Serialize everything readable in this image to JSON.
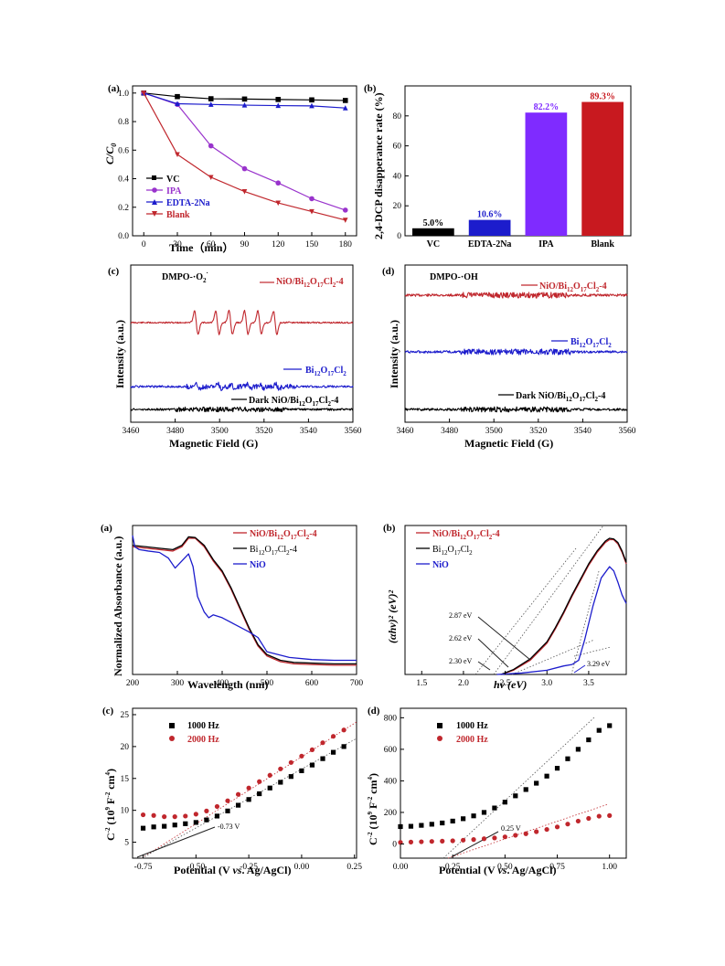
{
  "chart_data": [
    {
      "id": "a1",
      "type": "line",
      "panel": "(a)",
      "xlabel": "Time (min)",
      "ylabel": "C/C0",
      "xlim": [
        -10,
        190
      ],
      "ylim": [
        0,
        1.05
      ],
      "xticks": [
        0,
        30,
        60,
        90,
        120,
        150,
        180
      ],
      "yticks": [
        0.0,
        0.2,
        0.4,
        0.6,
        0.8,
        1.0
      ],
      "legend": "bottom-left",
      "series": [
        {
          "name": "VC",
          "color": "#000000",
          "marker": "square",
          "x": [
            0,
            30,
            60,
            90,
            120,
            150,
            180
          ],
          "y": [
            1.0,
            0.975,
            0.96,
            0.958,
            0.955,
            0.952,
            0.948
          ]
        },
        {
          "name": "IPA",
          "color": "#9933cc",
          "marker": "circle",
          "x": [
            0,
            30,
            60,
            90,
            120,
            150,
            180
          ],
          "y": [
            1.0,
            0.92,
            0.63,
            0.47,
            0.37,
            0.26,
            0.18
          ]
        },
        {
          "name": "EDTA-2Na",
          "color": "#1c1ccc",
          "marker": "triangle",
          "x": [
            0,
            30,
            60,
            90,
            120,
            150,
            180
          ],
          "y": [
            1.0,
            0.925,
            0.92,
            0.915,
            0.912,
            0.91,
            0.895
          ]
        },
        {
          "name": "Blank",
          "color": "#c0272d",
          "marker": "triangle-down",
          "x": [
            0,
            30,
            60,
            90,
            120,
            150,
            180
          ],
          "y": [
            1.0,
            0.57,
            0.41,
            0.31,
            0.23,
            0.17,
            0.11
          ]
        }
      ]
    },
    {
      "id": "b1",
      "type": "bar",
      "panel": "(b)",
      "ylabel": "2,4-DCP disapperance rate (%)",
      "ylim": [
        0,
        100
      ],
      "yticks": [
        0,
        20,
        40,
        60,
        80
      ],
      "categories": [
        "VC",
        "EDTA-2Na",
        "IPA",
        "Blank"
      ],
      "values": [
        5.0,
        10.6,
        82.2,
        89.3
      ],
      "labels": [
        "5.0%",
        "10.6%",
        "82.2%",
        "89.3%"
      ],
      "colors": [
        "#000000",
        "#1c1ccc",
        "#7f2bff",
        "#c8191f"
      ]
    },
    {
      "id": "c1",
      "type": "line",
      "panel": "(c)",
      "subtitle": "DMPO-·O2−",
      "xlabel": "Magnetic Field (G)",
      "ylabel": "Intensity (a.u.)",
      "xlim": [
        3460,
        3560
      ],
      "xticks": [
        3460,
        3480,
        3500,
        3520,
        3540,
        3560
      ],
      "series": [
        {
          "name": "NiO/Bi12O17Cl2-4",
          "color": "#c0272d"
        },
        {
          "name": "Bi12O17Cl2",
          "color": "#1c1ccc"
        },
        {
          "name": "Dark NiO/Bi12O17Cl2-4",
          "color": "#000000"
        }
      ],
      "epr_lines": [
        3489.5,
        3499,
        3505,
        3512,
        3518,
        3525
      ]
    },
    {
      "id": "d1",
      "type": "line",
      "panel": "(d)",
      "subtitle": "DMPO-·OH",
      "xlabel": "Magnetic Field (G)",
      "ylabel": "Intensity (a.u.)",
      "xlim": [
        3460,
        3560
      ],
      "xticks": [
        3460,
        3480,
        3500,
        3520,
        3540,
        3560
      ],
      "series": [
        {
          "name": "NiO/Bi12O17Cl2-4",
          "color": "#c0272d"
        },
        {
          "name": "Bi12O17Cl2",
          "color": "#1c1ccc"
        },
        {
          "name": "Dark NiO/Bi12O17Cl2-4",
          "color": "#000000"
        }
      ]
    },
    {
      "id": "a2",
      "type": "line",
      "panel": "(a)",
      "xlabel": "Wavelength (nm)",
      "ylabel": "Normalized Absorbance (a.u.)",
      "xlim": [
        200,
        700
      ],
      "xticks": [
        200,
        300,
        400,
        500,
        600,
        700
      ],
      "series": [
        {
          "name": "NiO/Bi12O17Cl2-4",
          "color": "#c0272d",
          "x": [
            200,
            230,
            260,
            290,
            310,
            325,
            340,
            360,
            380,
            400,
            420,
            440,
            460,
            480,
            500,
            530,
            560,
            600,
            650,
            700
          ],
          "y": [
            0.9,
            0.89,
            0.88,
            0.87,
            0.9,
            0.96,
            0.96,
            0.9,
            0.8,
            0.72,
            0.6,
            0.46,
            0.32,
            0.2,
            0.13,
            0.09,
            0.075,
            0.07,
            0.065,
            0.065
          ]
        },
        {
          "name": "Bi12O17Cl2-4",
          "color": "#000000",
          "x": [
            200,
            230,
            260,
            290,
            310,
            325,
            340,
            360,
            380,
            400,
            420,
            440,
            460,
            480,
            500,
            530,
            560,
            600,
            650,
            700
          ],
          "y": [
            0.91,
            0.9,
            0.89,
            0.88,
            0.91,
            0.97,
            0.965,
            0.91,
            0.81,
            0.73,
            0.61,
            0.47,
            0.33,
            0.21,
            0.14,
            0.1,
            0.085,
            0.08,
            0.075,
            0.075
          ]
        },
        {
          "name": "NiO",
          "color": "#1c1ccc",
          "x": [
            200,
            205,
            215,
            235,
            260,
            280,
            295,
            310,
            325,
            335,
            345,
            360,
            370,
            380,
            400,
            430,
            460,
            480,
            500,
            550,
            600,
            650,
            700
          ],
          "y": [
            0.98,
            0.9,
            0.88,
            0.87,
            0.86,
            0.82,
            0.75,
            0.8,
            0.85,
            0.76,
            0.55,
            0.44,
            0.4,
            0.42,
            0.4,
            0.35,
            0.3,
            0.26,
            0.16,
            0.12,
            0.105,
            0.1,
            0.1
          ]
        }
      ]
    },
    {
      "id": "b2",
      "type": "line",
      "panel": "(b)",
      "xlabel": "hν (eV)",
      "ylabel": "(αhν)² (eV)²",
      "xlim": [
        1.3,
        3.95
      ],
      "xticks": [
        1.5,
        2.0,
        2.5,
        3.0,
        3.5
      ],
      "series": [
        {
          "name": "NiO/Bi12O17Cl2-4",
          "color": "#c0272d",
          "x": [
            2.45,
            2.6,
            2.8,
            3.0,
            3.1,
            3.2,
            3.3,
            3.4,
            3.5,
            3.6,
            3.7,
            3.75,
            3.8,
            3.85,
            3.9,
            3.95
          ],
          "y": [
            0.0,
            0.03,
            0.1,
            0.22,
            0.32,
            0.43,
            0.55,
            0.66,
            0.77,
            0.86,
            0.93,
            0.95,
            0.95,
            0.92,
            0.86,
            0.78
          ]
        },
        {
          "name": "Bi12O17Cl2",
          "color": "#000000",
          "x": [
            2.45,
            2.6,
            2.8,
            3.0,
            3.1,
            3.2,
            3.3,
            3.4,
            3.5,
            3.6,
            3.7,
            3.75,
            3.8,
            3.85,
            3.9,
            3.95
          ],
          "y": [
            0.0,
            0.035,
            0.11,
            0.23,
            0.33,
            0.44,
            0.56,
            0.67,
            0.78,
            0.87,
            0.94,
            0.96,
            0.955,
            0.93,
            0.87,
            0.79
          ]
        },
        {
          "name": "NiO",
          "color": "#1c1ccc",
          "x": [
            2.4,
            2.7,
            3.0,
            3.2,
            3.3,
            3.38,
            3.45,
            3.55,
            3.65,
            3.75,
            3.8,
            3.85,
            3.9,
            3.95
          ],
          "y": [
            0.0,
            0.01,
            0.03,
            0.06,
            0.07,
            0.1,
            0.24,
            0.48,
            0.68,
            0.76,
            0.73,
            0.65,
            0.56,
            0.5
          ]
        }
      ],
      "annotations": [
        "2.87 eV",
        "2.62 eV",
        "2.30 eV",
        "3.29 eV"
      ]
    },
    {
      "id": "c2",
      "type": "scatter",
      "panel": "(c)",
      "xlabel": "Potential (V vs. Ag/AgCl)",
      "ylabel": "C−2 (10⁹ F−2 cm⁴)",
      "xlim": [
        -0.8,
        0.26
      ],
      "ylim": [
        2.5,
        26
      ],
      "xticks": [
        -0.75,
        -0.5,
        -0.25,
        0.0,
        0.25
      ],
      "yticks": [
        5,
        10,
        15,
        20,
        25
      ],
      "series": [
        {
          "name": "1000 Hz",
          "color": "#000000",
          "marker": "square",
          "x": [
            -0.75,
            -0.7,
            -0.65,
            -0.6,
            -0.55,
            -0.5,
            -0.45,
            -0.4,
            -0.35,
            -0.3,
            -0.25,
            -0.2,
            -0.15,
            -0.1,
            -0.05,
            0.0,
            0.05,
            0.1,
            0.15,
            0.2
          ],
          "y": [
            7.2,
            7.4,
            7.5,
            7.7,
            7.9,
            8.1,
            8.5,
            9.1,
            9.9,
            10.8,
            11.7,
            12.6,
            13.5,
            14.4,
            15.3,
            16.2,
            17.1,
            18.1,
            19.1,
            20.0
          ]
        },
        {
          "name": "2000 Hz",
          "color": "#c0272d",
          "marker": "circle",
          "x": [
            -0.75,
            -0.7,
            -0.65,
            -0.6,
            -0.55,
            -0.5,
            -0.45,
            -0.4,
            -0.35,
            -0.3,
            -0.25,
            -0.2,
            -0.15,
            -0.1,
            -0.05,
            0.0,
            0.05,
            0.1,
            0.15,
            0.2
          ],
          "y": [
            9.3,
            9.2,
            9.0,
            9.0,
            9.1,
            9.4,
            9.9,
            10.6,
            11.5,
            12.5,
            13.5,
            14.5,
            15.5,
            16.5,
            17.5,
            18.5,
            19.5,
            20.6,
            21.6,
            22.6
          ]
        }
      ],
      "annotations": [
        "-0.73 V"
      ]
    },
    {
      "id": "d2",
      "type": "scatter",
      "panel": "(d)",
      "xlabel": "Potential (V vs. Ag/AgCl)",
      "ylabel": "C−2 (10⁹ F−2 cm⁴)",
      "xlim": [
        0.0,
        1.08
      ],
      "ylim": [
        -90,
        860
      ],
      "xticks": [
        0.0,
        0.25,
        0.5,
        0.75,
        1.0
      ],
      "yticks": [
        0,
        200,
        400,
        600,
        800
      ],
      "series": [
        {
          "name": "1000 Hz",
          "color": "#000000",
          "marker": "square",
          "x": [
            0.0,
            0.05,
            0.1,
            0.15,
            0.2,
            0.25,
            0.3,
            0.35,
            0.4,
            0.45,
            0.5,
            0.55,
            0.6,
            0.65,
            0.7,
            0.75,
            0.8,
            0.85,
            0.9,
            0.95,
            1.0
          ],
          "y": [
            110,
            112,
            118,
            125,
            133,
            145,
            160,
            178,
            200,
            228,
            265,
            305,
            345,
            385,
            430,
            480,
            540,
            600,
            660,
            720,
            750
          ]
        },
        {
          "name": "2000 Hz",
          "color": "#c0272d",
          "marker": "circle",
          "x": [
            0.0,
            0.05,
            0.1,
            0.15,
            0.2,
            0.25,
            0.3,
            0.35,
            0.4,
            0.45,
            0.5,
            0.55,
            0.6,
            0.65,
            0.7,
            0.75,
            0.8,
            0.85,
            0.9,
            0.95,
            1.0
          ],
          "y": [
            10,
            12,
            14,
            16,
            18,
            20,
            24,
            28,
            33,
            38,
            45,
            55,
            65,
            78,
            92,
            108,
            126,
            145,
            162,
            176,
            180
          ]
        }
      ],
      "annotations": [
        "0.25 V"
      ]
    }
  ]
}
